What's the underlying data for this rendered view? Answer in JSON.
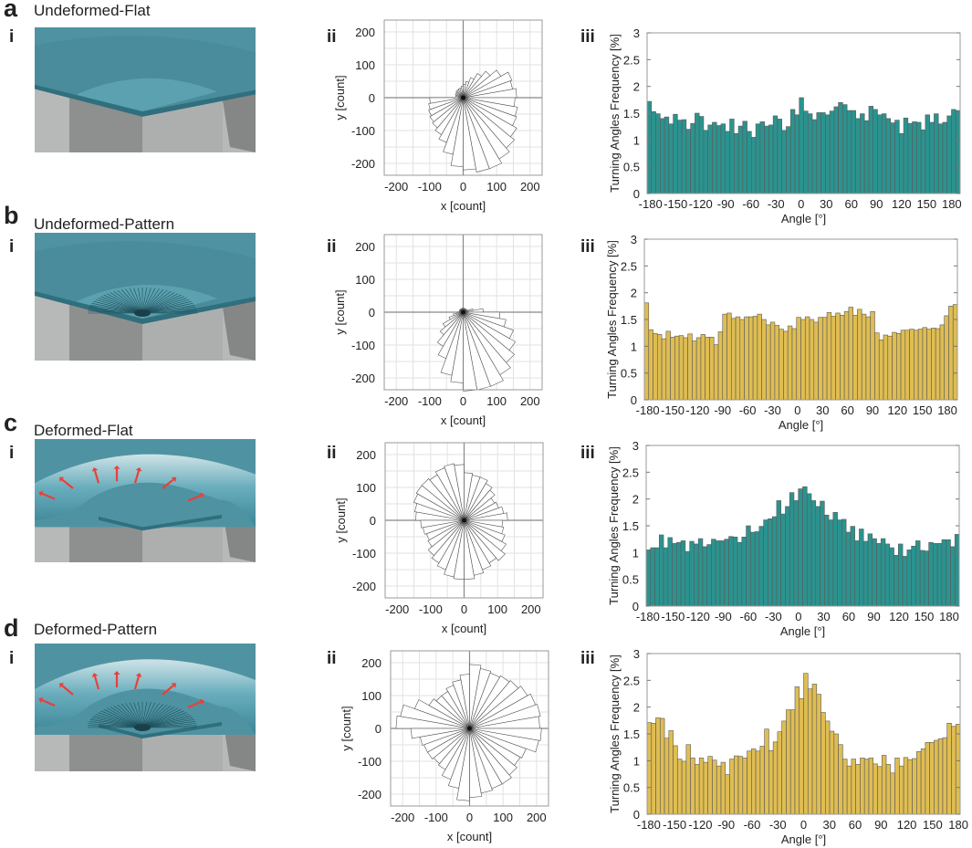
{
  "panels": [
    {
      "letter": "a",
      "title": "Undeformed-Flat",
      "sub_i": "i",
      "sub_ii": "ii",
      "sub_iii": "iii",
      "render": {
        "deformed": false,
        "pattern": false
      }
    },
    {
      "letter": "b",
      "title": "Undeformed-Pattern",
      "sub_i": "i",
      "sub_ii": "ii",
      "sub_iii": "iii",
      "render": {
        "deformed": false,
        "pattern": true
      }
    },
    {
      "letter": "c",
      "title": "Deformed-Flat",
      "sub_i": "i",
      "sub_ii": "ii",
      "sub_iii": "iii",
      "render": {
        "deformed": true,
        "pattern": false
      }
    },
    {
      "letter": "d",
      "title": "Deformed-Pattern",
      "sub_i": "i",
      "sub_ii": "ii",
      "sub_iii": "iii",
      "render": {
        "deformed": true,
        "pattern": true
      }
    }
  ],
  "colors": {
    "teal": "#2b938f",
    "gold": "#dfbd52",
    "bar_edge": "#5a5a5a",
    "plate": "#4f93a2",
    "arrow": "#e8403a"
  },
  "chart_data": [
    {
      "panel": "a-ii",
      "type": "bar",
      "subtype": "polar-rose",
      "xlabel": "x [count]",
      "ylabel": "y [count]",
      "xlim": [
        -236,
        236
      ],
      "ylim": [
        -236,
        236
      ],
      "xticks": [
        -200,
        -100,
        0,
        100,
        200
      ],
      "yticks": [
        200,
        100,
        0,
        -100,
        -200
      ],
      "grid": true,
      "bin_start_deg": 0,
      "bin_width_deg": 10,
      "values": [
        160,
        150,
        155,
        130,
        105,
        85,
        65,
        50,
        40,
        35,
        30,
        30,
        28,
        28,
        25,
        25,
        22,
        22,
        100,
        105,
        110,
        115,
        120,
        130,
        145,
        175,
        210,
        220,
        230,
        230,
        215,
        200,
        185,
        170,
        165,
        155
      ]
    },
    {
      "panel": "a-iii",
      "type": "bar",
      "title": "",
      "xlabel": "Angle [°]",
      "ylabel": "Turning Angles Frequency [%]",
      "xlim": [
        -184,
        190
      ],
      "ylim": [
        0,
        3
      ],
      "xticks": [
        -180,
        -150,
        -120,
        -90,
        -60,
        -30,
        0,
        30,
        60,
        90,
        120,
        150,
        180
      ],
      "yticks": [
        0,
        0.5,
        1,
        1.5,
        2,
        2.5,
        3
      ],
      "color": "teal",
      "values": [
        1.72,
        1.53,
        1.49,
        1.4,
        1.43,
        1.3,
        1.48,
        1.37,
        1.38,
        1.2,
        1.31,
        1.5,
        1.44,
        1.18,
        1.28,
        1.33,
        1.27,
        1.3,
        1.16,
        1.39,
        1.12,
        1.26,
        1.35,
        1.16,
        1.05,
        1.3,
        1.34,
        1.26,
        1.28,
        1.45,
        1.39,
        1.18,
        1.25,
        1.57,
        1.47,
        1.79,
        1.54,
        1.49,
        1.38,
        1.51,
        1.51,
        1.47,
        1.54,
        1.62,
        1.7,
        1.66,
        1.55,
        1.55,
        1.4,
        1.49,
        1.36,
        1.63,
        1.57,
        1.47,
        1.49,
        1.4,
        1.32,
        1.37,
        1.12,
        1.41,
        1.31,
        1.34,
        1.33,
        1.19,
        1.47,
        1.33,
        1.49,
        1.3,
        1.33,
        1.45,
        1.57,
        1.55
      ]
    },
    {
      "panel": "b-ii",
      "type": "bar",
      "subtype": "polar-rose",
      "xlabel": "x [count]",
      "ylabel": "y [count]",
      "xlim": [
        -236,
        236
      ],
      "ylim": [
        -236,
        236
      ],
      "xticks": [
        -200,
        -100,
        0,
        100,
        200
      ],
      "yticks": [
        200,
        100,
        0,
        -100,
        -200
      ],
      "grid": true,
      "bin_start_deg": 0,
      "bin_width_deg": 10,
      "values": [
        60,
        30,
        15,
        12,
        12,
        12,
        12,
        12,
        12,
        12,
        12,
        12,
        12,
        12,
        12,
        12,
        12,
        12,
        20,
        30,
        45,
        70,
        90,
        120,
        150,
        195,
        215,
        240,
        240,
        240,
        220,
        200,
        180,
        160,
        130,
        110
      ]
    },
    {
      "panel": "b-iii",
      "type": "bar",
      "title": "",
      "xlabel": "Angle [°]",
      "ylabel": "Turning Angles Frequency [%]",
      "xlim": [
        -184,
        192
      ],
      "ylim": [
        0,
        3
      ],
      "xticks": [
        -180,
        -150,
        -120,
        -90,
        -60,
        -30,
        0,
        30,
        60,
        90,
        120,
        150,
        180
      ],
      "yticks": [
        0,
        0.5,
        1,
        1.5,
        2,
        2.5,
        3
      ],
      "color": "gold",
      "values": [
        1.81,
        1.31,
        1.24,
        1.22,
        1.14,
        1.28,
        1.17,
        1.19,
        1.2,
        1.16,
        1.23,
        1.1,
        1.16,
        1.22,
        1.17,
        1.17,
        1.03,
        1.27,
        1.6,
        1.62,
        1.52,
        1.55,
        1.5,
        1.55,
        1.55,
        1.56,
        1.6,
        1.5,
        1.4,
        1.45,
        1.39,
        1.32,
        1.28,
        1.38,
        1.33,
        1.54,
        1.5,
        1.55,
        1.5,
        1.45,
        1.54,
        1.54,
        1.63,
        1.56,
        1.62,
        1.58,
        1.65,
        1.73,
        1.58,
        1.69,
        1.6,
        1.55,
        1.65,
        1.25,
        1.12,
        1.21,
        1.19,
        1.26,
        1.24,
        1.3,
        1.3,
        1.32,
        1.3,
        1.32,
        1.35,
        1.32,
        1.34,
        1.33,
        1.4,
        1.57,
        1.75,
        1.78
      ]
    },
    {
      "panel": "c-ii",
      "type": "bar",
      "subtype": "polar-rose",
      "xlabel": "x [count]",
      "ylabel": "y [count]",
      "xlim": [
        -236,
        236
      ],
      "ylim": [
        -236,
        236
      ],
      "xticks": [
        -200,
        -100,
        0,
        100,
        200
      ],
      "yticks": [
        200,
        100,
        0,
        -100,
        -200
      ],
      "grid": true,
      "bin_start_deg": 0,
      "bin_width_deg": 10,
      "values": [
        130,
        120,
        110,
        105,
        120,
        130,
        140,
        140,
        145,
        170,
        175,
        170,
        160,
        165,
        165,
        160,
        150,
        145,
        130,
        125,
        120,
        125,
        140,
        150,
        160,
        175,
        180,
        180,
        170,
        160,
        150,
        160,
        145,
        130,
        120,
        115
      ]
    },
    {
      "panel": "c-iii",
      "type": "bar",
      "title": "",
      "xlabel": "Angle [°]",
      "ylabel": "Turning Angles Frequency [%]",
      "xlim": [
        -182,
        192
      ],
      "ylim": [
        0,
        3
      ],
      "xticks": [
        -180,
        -150,
        -120,
        -90,
        -60,
        -30,
        0,
        30,
        60,
        90,
        120,
        150,
        180
      ],
      "yticks": [
        0,
        0.5,
        1,
        1.5,
        2,
        2.5,
        3
      ],
      "color": "teal",
      "values": [
        1.05,
        1.09,
        1.09,
        1.33,
        1.09,
        1.28,
        1.17,
        1.19,
        1.22,
        1.02,
        1.21,
        1.16,
        1.26,
        1.11,
        1.15,
        1.25,
        1.22,
        1.22,
        1.25,
        1.3,
        1.29,
        1.19,
        1.29,
        1.5,
        1.38,
        1.39,
        1.49,
        1.61,
        1.63,
        1.67,
        1.97,
        1.72,
        1.86,
        2.12,
        1.97,
        2.19,
        2.23,
        2.1,
        1.97,
        1.86,
        1.96,
        1.7,
        1.61,
        1.75,
        1.61,
        1.62,
        1.38,
        1.49,
        1.22,
        1.44,
        1.21,
        1.35,
        1.26,
        1.17,
        1.26,
        1.16,
        1.09,
        0.95,
        1.16,
        0.93,
        1.05,
        1.12,
        1.22,
        1.04,
        1.03,
        1.19,
        1.17,
        1.17,
        1.24,
        1.24,
        1.11,
        1.34
      ]
    },
    {
      "panel": "d-ii",
      "type": "bar",
      "subtype": "polar-rose",
      "xlabel": "x [count]",
      "ylabel": "y [count]",
      "xlim": [
        -236,
        236
      ],
      "ylim": [
        -236,
        236
      ],
      "xticks": [
        -200,
        -100,
        0,
        100,
        200
      ],
      "yticks": [
        200,
        100,
        0,
        -100,
        -200
      ],
      "grid": true,
      "bin_start_deg": 0,
      "bin_width_deg": 10,
      "values": [
        210,
        215,
        210,
        200,
        190,
        185,
        180,
        185,
        195,
        165,
        150,
        140,
        130,
        130,
        140,
        175,
        210,
        220,
        175,
        150,
        145,
        145,
        140,
        145,
        165,
        185,
        220,
        210,
        200,
        195,
        195,
        185,
        175,
        180,
        210,
        215
      ]
    },
    {
      "panel": "d-iii",
      "type": "bar",
      "title": "",
      "xlabel": "Angle [°]",
      "ylabel": "Turning Angles Frequency [%]",
      "xlim": [
        -182,
        182
      ],
      "ylim": [
        0,
        3
      ],
      "xticks": [
        -180,
        -150,
        -120,
        -90,
        -60,
        -30,
        0,
        30,
        60,
        90,
        120,
        150,
        180
      ],
      "yticks": [
        0,
        0.5,
        1,
        1.5,
        2,
        2.5,
        3
      ],
      "color": "gold",
      "values": [
        1.71,
        1.7,
        1.8,
        1.79,
        1.42,
        1.56,
        1.28,
        1.03,
        0.99,
        1.3,
        1.05,
        0.93,
        1.05,
        0.97,
        1.08,
        1.01,
        0.9,
        0.97,
        0.74,
        1.03,
        1.09,
        1.08,
        1.05,
        1.18,
        1.22,
        1.18,
        1.27,
        1.59,
        1.19,
        1.35,
        1.54,
        1.74,
        1.95,
        1.95,
        2.38,
        2.16,
        2.63,
        2.34,
        2.43,
        2.24,
        1.9,
        1.74,
        1.55,
        1.5,
        1.3,
        1.03,
        0.9,
        1.03,
        0.93,
        1.05,
        1.03,
        1.05,
        0.94,
        0.89,
        1.1,
        0.93,
        0.77,
        1.05,
        0.9,
        1.06,
        1.02,
        1.04,
        1.17,
        1.22,
        1.34,
        1.34,
        1.38,
        1.41,
        1.43,
        1.7,
        1.64,
        1.68
      ]
    }
  ]
}
